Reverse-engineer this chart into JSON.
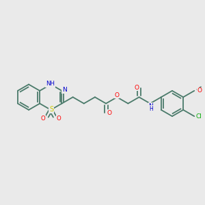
{
  "background_color": "#eaeaea",
  "figure_size": [
    3.0,
    3.0
  ],
  "dpi": 100,
  "atom_colors": {
    "bond": "#4a7a6a",
    "N": "#0000cc",
    "O": "#ff0000",
    "S": "#cccc00",
    "Cl": "#00aa00"
  }
}
